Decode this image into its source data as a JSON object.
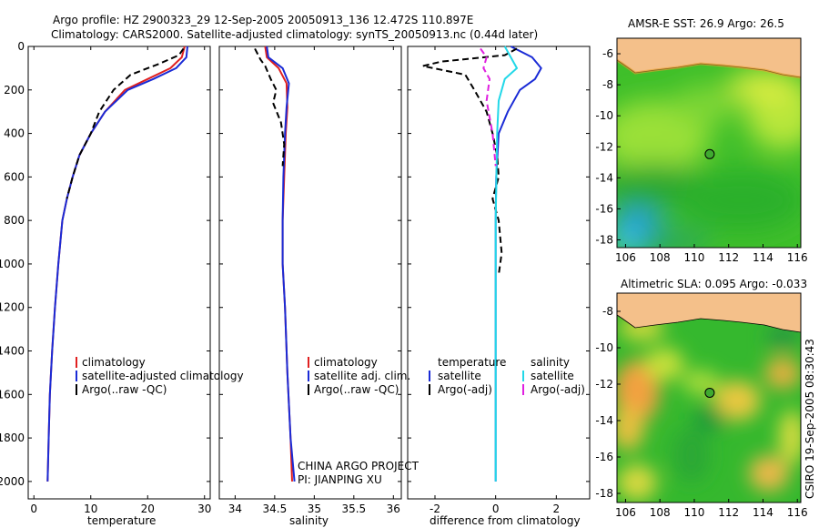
{
  "header": {
    "line1": "Argo profile: HZ 2900323_29 12-Sep-2005 20050913_136 12.472S 110.897E",
    "line2": "Climatology: CARS2000. Satellite-adjusted climatology: synTS_20050913.nc (0.44d later)"
  },
  "footer": {
    "stamp": "CSIRO 19-Sep-2005 08:30:43",
    "project": "CHINA ARGO PROJECT",
    "pi": "PI: JIANPING XU"
  },
  "colors": {
    "climatology": "#e02020",
    "satellite": "#1a2bd6",
    "argo": "#000000",
    "sal_satellite": "#22d8e8",
    "sal_argo": "#e020e0"
  },
  "chart_data": [
    {
      "type": "line",
      "name": "temperature-profile",
      "xlabel": "temperature",
      "xlim": [
        -1,
        31
      ],
      "ylim": [
        0,
        2080
      ],
      "xticks": [
        0,
        10,
        20,
        30
      ],
      "yticks": [
        0,
        200,
        400,
        600,
        800,
        1000,
        1200,
        1400,
        1600,
        1800,
        2000
      ],
      "legend": [
        "climatology",
        "satellite-adjusted climatology",
        "Argo(..raw -QC)"
      ],
      "series": [
        {
          "name": "climatology",
          "color": "#e02020",
          "x": [
            26.5,
            26,
            24,
            20,
            16,
            12.5,
            10,
            8,
            6.8,
            5.8,
            5,
            4.3,
            3.7,
            3.2,
            2.8,
            2.6,
            2.4
          ],
          "y": [
            0,
            50,
            100,
            150,
            200,
            300,
            400,
            500,
            600,
            700,
            800,
            1000,
            1200,
            1400,
            1600,
            1800,
            2000
          ]
        },
        {
          "name": "satellite-adjusted climatology",
          "color": "#1a2bd6",
          "x": [
            27,
            26.8,
            25,
            21,
            16.5,
            12.5,
            10,
            8,
            6.8,
            5.8,
            5,
            4.3,
            3.7,
            3.2,
            2.8,
            2.6,
            2.4
          ],
          "y": [
            0,
            50,
            100,
            150,
            200,
            300,
            400,
            500,
            600,
            700,
            800,
            1000,
            1200,
            1400,
            1600,
            1800,
            2000
          ]
        },
        {
          "name": "Argo(..raw -QC)",
          "color": "#000000",
          "dash": true,
          "x": [
            26.3,
            25.5,
            22,
            17,
            14,
            11.5,
            10,
            8,
            6.8,
            5.8
          ],
          "y": [
            10,
            40,
            80,
            130,
            200,
            300,
            400,
            500,
            600,
            700
          ]
        }
      ]
    },
    {
      "type": "line",
      "name": "salinity-profile",
      "xlabel": "salinity",
      "xlim": [
        33.8,
        36.1
      ],
      "ylim": [
        0,
        2080
      ],
      "xticks": [
        34,
        34.5,
        35,
        35.5,
        36
      ],
      "legend": [
        "climatology",
        "satellite adj. clim.",
        "Argo(..raw -QC)"
      ],
      "series": [
        {
          "name": "climatology",
          "color": "#e02020",
          "x": [
            34.38,
            34.4,
            34.55,
            34.65,
            34.66,
            34.64,
            34.62,
            34.6,
            34.6,
            34.63,
            34.66,
            34.7,
            34.72
          ],
          "y": [
            0,
            50,
            100,
            170,
            280,
            400,
            600,
            800,
            1000,
            1200,
            1500,
            1800,
            2000
          ]
        },
        {
          "name": "satellite adj. clim.",
          "color": "#1a2bd6",
          "x": [
            34.4,
            34.42,
            34.6,
            34.68,
            34.65,
            34.63,
            34.61,
            34.6,
            34.6,
            34.63,
            34.66,
            34.7,
            34.75
          ],
          "y": [
            0,
            50,
            100,
            170,
            280,
            400,
            600,
            800,
            1000,
            1200,
            1500,
            1800,
            2000
          ]
        },
        {
          "name": "Argo(..raw -QC)",
          "color": "#000000",
          "dash": true,
          "x": [
            34.25,
            34.32,
            34.38,
            34.45,
            34.52,
            34.48,
            34.58,
            34.62,
            34.6
          ],
          "y": [
            10,
            60,
            90,
            150,
            200,
            260,
            350,
            450,
            550
          ]
        }
      ]
    },
    {
      "type": "line",
      "name": "difference-from-climatology",
      "xlabel": "difference from climatology",
      "xlim": [
        -2.9,
        3.1
      ],
      "ylim": [
        0,
        2080
      ],
      "xticks": [
        -2,
        0,
        2
      ],
      "legend_title_left": "temperature",
      "legend_title_right": "salinity",
      "legend": [
        "satellite",
        "Argo(-adj)",
        "satellite",
        "Argo(-adj)"
      ],
      "series": [
        {
          "name": "temperature satellite",
          "color": "#1a2bd6",
          "x": [
            0.5,
            1.2,
            1.5,
            1.3,
            0.8,
            0.4,
            0.1,
            0.02,
            0,
            0,
            0
          ],
          "y": [
            0,
            50,
            100,
            150,
            200,
            300,
            400,
            600,
            800,
            1200,
            2000
          ]
        },
        {
          "name": "temperature Argo(-adj)",
          "color": "#000000",
          "dash": true,
          "x": [
            0.7,
            0.3,
            -1.8,
            -2.4,
            -1.0,
            -0.7,
            -0.3,
            -0.1,
            0.05,
            0.1,
            -0.1,
            0.1,
            0.2,
            0.1
          ],
          "y": [
            10,
            40,
            70,
            90,
            130,
            200,
            300,
            400,
            500,
            600,
            700,
            800,
            950,
            1050
          ]
        },
        {
          "name": "salinity satellite",
          "color": "#22d8e8",
          "x": [
            0.3,
            0.5,
            0.7,
            0.3,
            0.1,
            0.05,
            0,
            0,
            0
          ],
          "y": [
            0,
            50,
            100,
            150,
            250,
            400,
            800,
            1500,
            2000
          ]
        },
        {
          "name": "salinity Argo(-adj)",
          "color": "#e020e0",
          "dash": true,
          "x": [
            -0.5,
            -0.3,
            -0.4,
            -0.2,
            -0.3,
            -0.1,
            0
          ],
          "y": [
            10,
            50,
            100,
            150,
            250,
            400,
            550
          ]
        }
      ]
    },
    {
      "type": "heatmap",
      "name": "sst-map",
      "title": "AMSR-E SST: 26.9 Argo: 26.5",
      "xlim": [
        105.5,
        116.2
      ],
      "ylim": [
        -18.5,
        -5
      ],
      "xticks": [
        106,
        108,
        110,
        112,
        114,
        116
      ],
      "yticks": [
        -6,
        -8,
        -10,
        -12,
        -14,
        -16,
        -18
      ],
      "marker": {
        "lon": 110.897,
        "lat": -12.472
      }
    },
    {
      "type": "heatmap",
      "name": "sla-map",
      "title": "Altimetric SLA: 0.095 Argo: -0.033",
      "xlim": [
        105.5,
        116.2
      ],
      "ylim": [
        -18.5,
        -7
      ],
      "xticks": [
        106,
        108,
        110,
        112,
        114,
        116
      ],
      "yticks": [
        -8,
        -10,
        -12,
        -14,
        -16,
        -18
      ],
      "marker": {
        "lon": 110.897,
        "lat": -12.472
      }
    }
  ]
}
